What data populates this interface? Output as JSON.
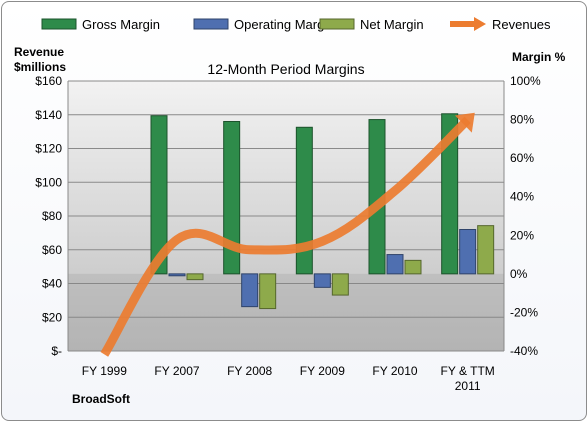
{
  "chart_data": {
    "type": "bar",
    "title": "12-Month Period Margins",
    "left_axis_title": [
      "Revenue",
      "$millions"
    ],
    "right_axis_title": "Margin %",
    "categories": [
      [
        "FY 1999"
      ],
      [
        "FY 2007"
      ],
      [
        "FY 2008"
      ],
      [
        "FY 2009"
      ],
      [
        "FY 2010"
      ],
      [
        "FY & TTM",
        "2011"
      ]
    ],
    "series": [
      {
        "name": "Gross Margin",
        "kind": "bar",
        "axis": "right",
        "color": "#2e8b4a",
        "values": [
          null,
          82,
          79,
          76,
          80,
          83
        ]
      },
      {
        "name": "Operating Margin",
        "kind": "bar",
        "axis": "right",
        "color": "#4f6fb0",
        "values": [
          null,
          -1,
          -17,
          -7,
          10,
          23
        ]
      },
      {
        "name": "Net Margin",
        "kind": "bar",
        "axis": "right",
        "color": "#8eaa4b",
        "values": [
          null,
          -3,
          -18,
          -11,
          7,
          25
        ]
      },
      {
        "name": "Revenues",
        "kind": "line",
        "axis": "left",
        "color": "#ec7c30",
        "values": [
          -2,
          66,
          60,
          65,
          95,
          137
        ]
      }
    ],
    "left_axis": {
      "min": 0,
      "max": 160,
      "step": 20,
      "tick_labels": [
        "$-",
        "$20",
        "$40",
        "$60",
        "$80",
        "$100",
        "$120",
        "$140",
        "$160"
      ]
    },
    "right_axis": {
      "min": -40,
      "max": 100,
      "step": 20,
      "tick_labels": [
        "-40%",
        "-20%",
        "0%",
        "20%",
        "40%",
        "60%",
        "80%",
        "100%"
      ]
    },
    "grid": true,
    "legend_position": "top",
    "footer": "BroadSoft"
  }
}
